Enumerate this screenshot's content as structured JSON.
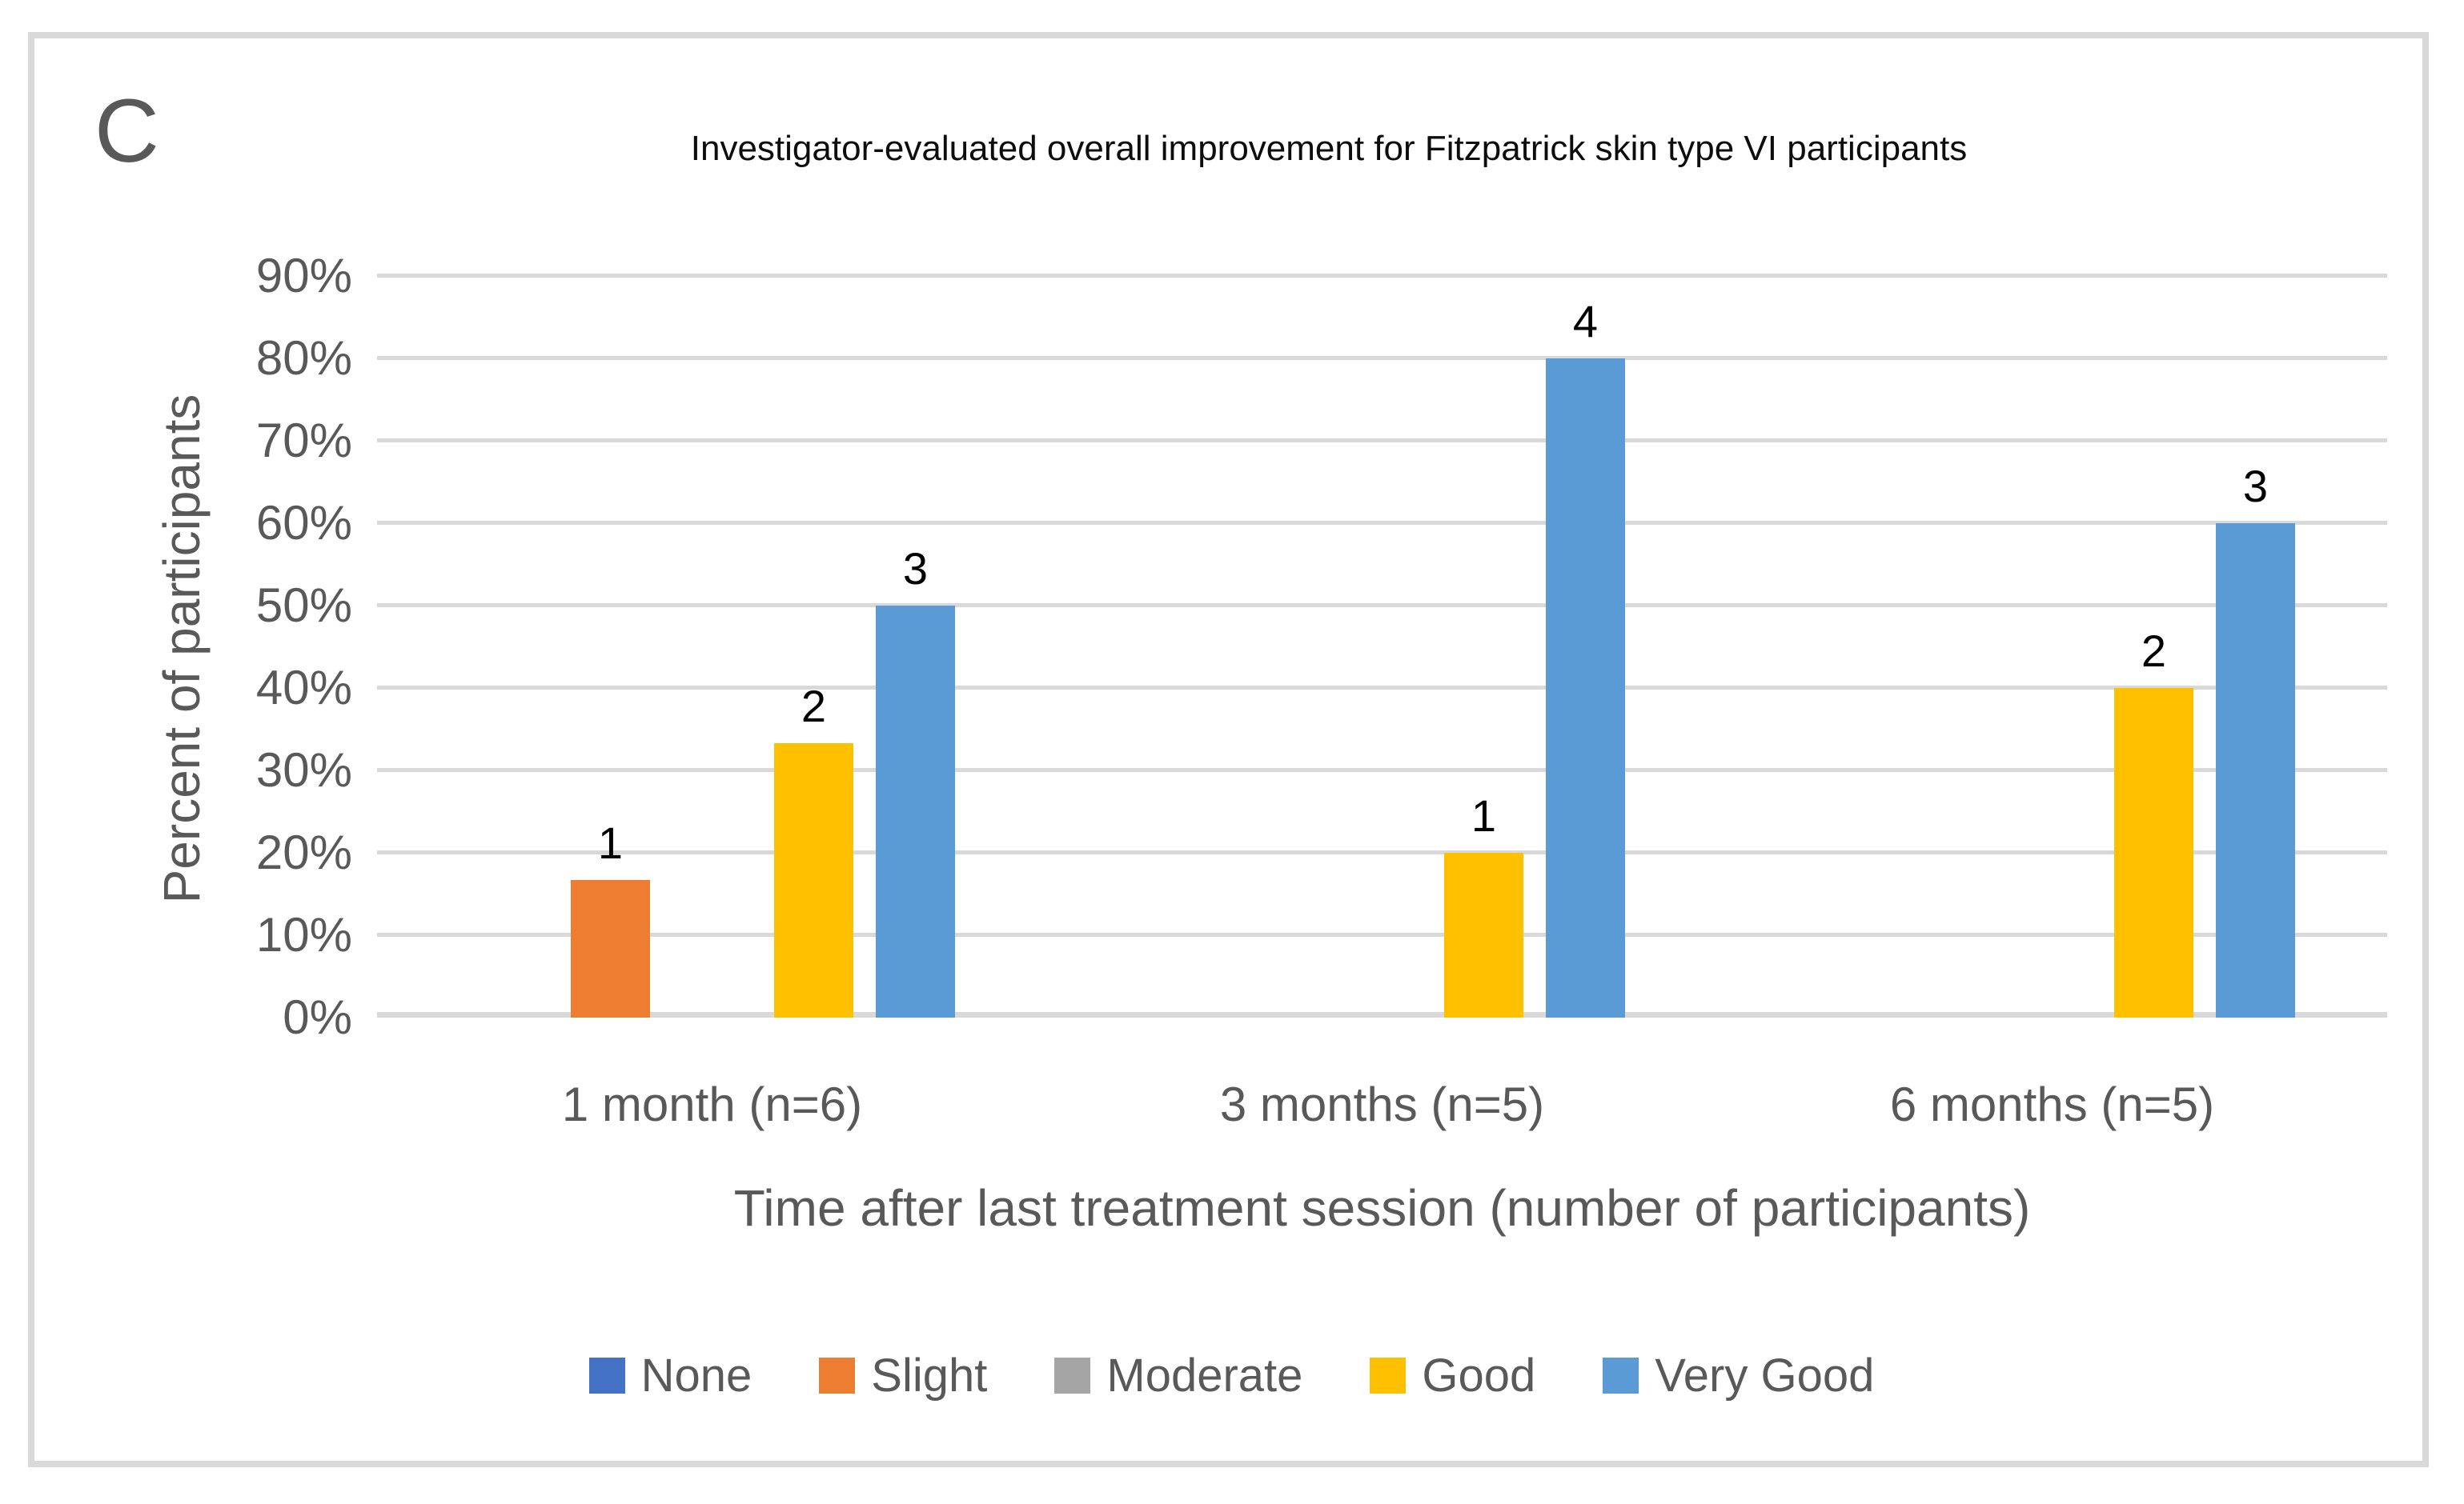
{
  "figure": {
    "panel_label": "C",
    "border_color": "#D9D9D9",
    "background": "#FFFFFF"
  },
  "chart_data": {
    "type": "bar",
    "title": "Investigator-evaluated overall improvement for Fitzpatrick skin type VI participants",
    "xlabel": "Time after last treatment session (number of participants)",
    "ylabel": "Percent of participants",
    "categories": [
      "1 month (n=6)",
      "3 months (n=5)",
      "6 months (n=5)"
    ],
    "series": [
      {
        "name": "None",
        "color": "#4472C4",
        "values_pct": [
          0,
          0,
          0
        ],
        "bar_labels": [
          "",
          "",
          ""
        ]
      },
      {
        "name": "Slight",
        "color": "#ED7D31",
        "values_pct": [
          16.67,
          0,
          0
        ],
        "bar_labels": [
          "1",
          "",
          ""
        ]
      },
      {
        "name": "Moderate",
        "color": "#A5A5A5",
        "values_pct": [
          0,
          0,
          0
        ],
        "bar_labels": [
          "",
          "",
          ""
        ]
      },
      {
        "name": "Good",
        "color": "#FFC000",
        "values_pct": [
          33.33,
          20,
          40
        ],
        "bar_labels": [
          "2",
          "1",
          "2"
        ]
      },
      {
        "name": "Very Good",
        "color": "#5B9BD5",
        "values_pct": [
          50,
          80,
          60
        ],
        "bar_labels": [
          "3",
          "4",
          "3"
        ]
      }
    ],
    "y_ticks": [
      "0%",
      "10%",
      "20%",
      "30%",
      "40%",
      "50%",
      "60%",
      "70%",
      "80%",
      "90%"
    ],
    "ylim": [
      0,
      90
    ],
    "grid": true,
    "gridline_color": "#D9D9D9",
    "axis_text_color": "#595959",
    "title_color": "#0D0D0D",
    "data_label_color": "#000000",
    "legend_position": "bottom"
  }
}
